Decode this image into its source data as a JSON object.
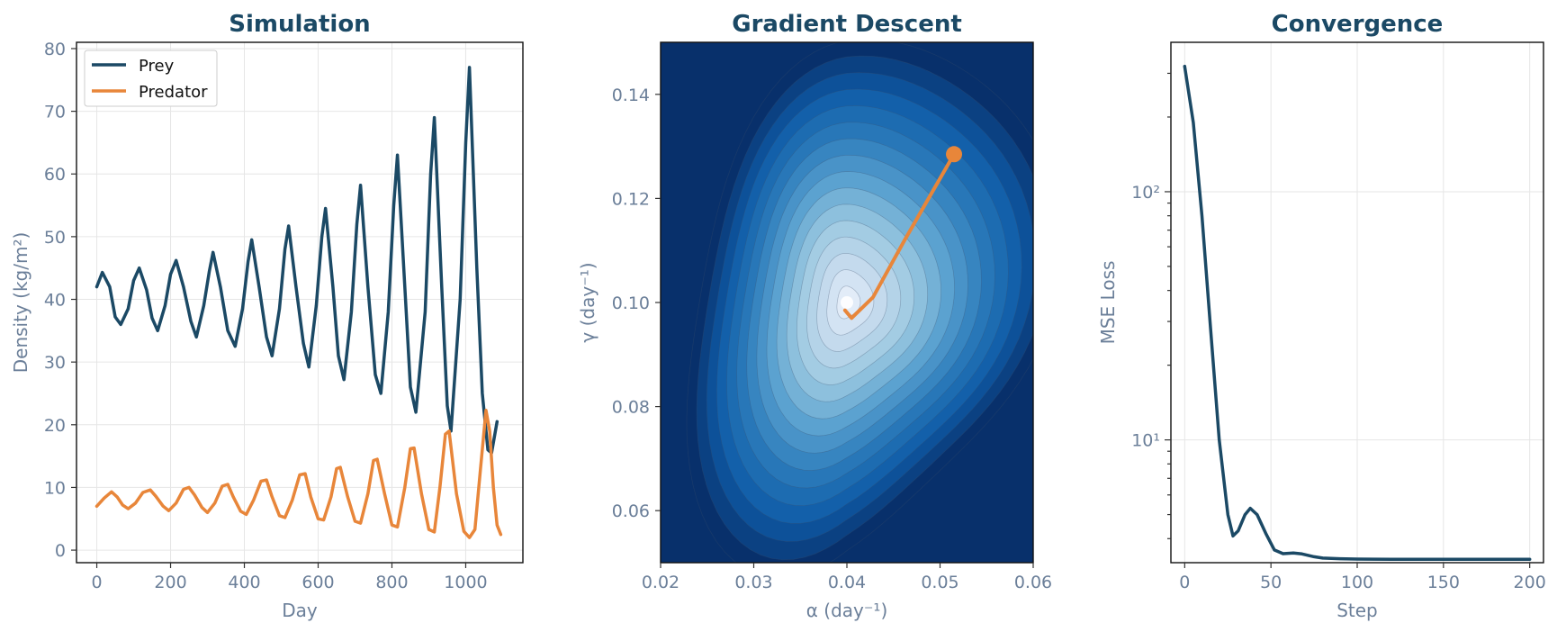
{
  "chart_data": [
    {
      "type": "line",
      "title": "Simulation",
      "xlabel": "Day",
      "ylabel": "Density (kg/m²)",
      "xlim": [
        -55,
        1155
      ],
      "ylim": [
        -2,
        81
      ],
      "xticks": [
        0,
        200,
        400,
        600,
        800,
        1000
      ],
      "yticks": [
        0,
        10,
        20,
        30,
        40,
        50,
        60,
        70,
        80
      ],
      "grid": true,
      "legend": "top-left",
      "series": [
        {
          "name": "Prey",
          "color": "#1b4965",
          "points": [
            [
              0,
              42
            ],
            [
              15,
              44.3
            ],
            [
              35,
              42
            ],
            [
              50,
              37.2
            ],
            [
              65,
              36
            ],
            [
              85,
              38.5
            ],
            [
              100,
              43
            ],
            [
              115,
              45
            ],
            [
              135,
              41.5
            ],
            [
              150,
              37
            ],
            [
              165,
              35
            ],
            [
              185,
              39
            ],
            [
              200,
              44
            ],
            [
              215,
              46.2
            ],
            [
              235,
              42
            ],
            [
              255,
              36.5
            ],
            [
              270,
              34
            ],
            [
              290,
              39
            ],
            [
              305,
              44.5
            ],
            [
              315,
              47.5
            ],
            [
              335,
              42
            ],
            [
              355,
              35
            ],
            [
              375,
              32.5
            ],
            [
              395,
              38.5
            ],
            [
              410,
              46
            ],
            [
              420,
              49.5
            ],
            [
              440,
              42
            ],
            [
              460,
              34
            ],
            [
              475,
              31
            ],
            [
              495,
              38.5
            ],
            [
              510,
              48
            ],
            [
              520,
              51.7
            ],
            [
              540,
              42
            ],
            [
              560,
              33
            ],
            [
              575,
              29.2
            ],
            [
              595,
              39
            ],
            [
              610,
              50
            ],
            [
              620,
              54.5
            ],
            [
              640,
              42
            ],
            [
              655,
              31
            ],
            [
              670,
              27.2
            ],
            [
              690,
              38
            ],
            [
              705,
              52
            ],
            [
              715,
              58.2
            ],
            [
              735,
              42
            ],
            [
              755,
              28
            ],
            [
              770,
              25
            ],
            [
              790,
              38
            ],
            [
              805,
              55
            ],
            [
              815,
              63
            ],
            [
              835,
              42
            ],
            [
              850,
              26
            ],
            [
              865,
              22
            ],
            [
              890,
              38
            ],
            [
              905,
              60
            ],
            [
              915,
              69
            ],
            [
              935,
              42
            ],
            [
              950,
              23
            ],
            [
              960,
              19
            ],
            [
              985,
              40
            ],
            [
              1000,
              65
            ],
            [
              1010,
              77
            ],
            [
              1030,
              45
            ],
            [
              1045,
              25
            ],
            [
              1060,
              16
            ],
            [
              1070,
              15.5
            ],
            [
              1085,
              20.5
            ]
          ]
        },
        {
          "name": "Predator",
          "color": "#e8863a",
          "points": [
            [
              0,
              7
            ],
            [
              20,
              8.3
            ],
            [
              40,
              9.3
            ],
            [
              55,
              8.5
            ],
            [
              70,
              7.2
            ],
            [
              85,
              6.6
            ],
            [
              105,
              7.5
            ],
            [
              125,
              9.2
            ],
            [
              145,
              9.6
            ],
            [
              160,
              8.6
            ],
            [
              180,
              7
            ],
            [
              195,
              6.3
            ],
            [
              215,
              7.5
            ],
            [
              235,
              9.7
            ],
            [
              250,
              10
            ],
            [
              265,
              8.8
            ],
            [
              285,
              6.8
            ],
            [
              300,
              6
            ],
            [
              320,
              7.5
            ],
            [
              340,
              10.2
            ],
            [
              355,
              10.5
            ],
            [
              370,
              8.5
            ],
            [
              390,
              6.2
            ],
            [
              405,
              5.7
            ],
            [
              425,
              8
            ],
            [
              445,
              11
            ],
            [
              460,
              11.2
            ],
            [
              475,
              8.5
            ],
            [
              495,
              5.5
            ],
            [
              510,
              5.2
            ],
            [
              530,
              8
            ],
            [
              550,
              12
            ],
            [
              565,
              12.2
            ],
            [
              580,
              8.5
            ],
            [
              600,
              5
            ],
            [
              615,
              4.8
            ],
            [
              635,
              8.5
            ],
            [
              650,
              13
            ],
            [
              660,
              13.2
            ],
            [
              680,
              8.5
            ],
            [
              700,
              4.6
            ],
            [
              715,
              4.3
            ],
            [
              735,
              9
            ],
            [
              750,
              14.3
            ],
            [
              760,
              14.5
            ],
            [
              780,
              9
            ],
            [
              800,
              4
            ],
            [
              815,
              3.7
            ],
            [
              835,
              10
            ],
            [
              850,
              16.2
            ],
            [
              860,
              16.3
            ],
            [
              880,
              9
            ],
            [
              900,
              3.3
            ],
            [
              915,
              2.9
            ],
            [
              930,
              10
            ],
            [
              945,
              18.5
            ],
            [
              955,
              19
            ],
            [
              975,
              9
            ],
            [
              995,
              3
            ],
            [
              1010,
              2
            ],
            [
              1025,
              3.3
            ],
            [
              1040,
              13
            ],
            [
              1055,
              22.3
            ],
            [
              1065,
              19
            ],
            [
              1075,
              10
            ],
            [
              1085,
              4
            ],
            [
              1095,
              2.5
            ]
          ]
        }
      ]
    },
    {
      "type": "heatmap",
      "title": "Gradient Descent",
      "xlabel": "α (day⁻¹)",
      "ylabel": "γ (day⁻¹)",
      "xlim": [
        0.02,
        0.06
      ],
      "ylim": [
        0.05,
        0.15
      ],
      "xticks": [
        0.02,
        0.03,
        0.04,
        0.05,
        0.06
      ],
      "yticks": [
        0.06,
        0.08,
        0.1,
        0.12,
        0.14
      ],
      "colormap": [
        "#f1f6fd",
        "#c9dcef",
        "#9ecae1",
        "#5ba2d0",
        "#2b7bba",
        "#0f5ca8",
        "#08306b"
      ],
      "minimum": {
        "alpha": 0.04,
        "gamma": 0.1
      },
      "path": {
        "color": "#e8863a",
        "points": [
          [
            0.0515,
            0.1285
          ],
          [
            0.0462,
            0.112
          ],
          [
            0.0428,
            0.101
          ],
          [
            0.0405,
            0.097
          ],
          [
            0.0398,
            0.0985
          ]
        ]
      }
    },
    {
      "type": "line",
      "title": "Convergence",
      "xlabel": "Step",
      "ylabel": "MSE Loss",
      "yscale": "log",
      "xlim": [
        -8,
        208
      ],
      "ylim": [
        3.2,
        400
      ],
      "xticks": [
        0,
        50,
        100,
        150,
        200
      ],
      "yticks": [
        10,
        100
      ],
      "yticklabels": [
        "10¹",
        "10²"
      ],
      "grid": true,
      "series": [
        {
          "color": "#1b4965",
          "points": [
            [
              0,
              320
            ],
            [
              5,
              190
            ],
            [
              10,
              80
            ],
            [
              15,
              28
            ],
            [
              20,
              10
            ],
            [
              25,
              5
            ],
            [
              28,
              4.1
            ],
            [
              31,
              4.3
            ],
            [
              35,
              5
            ],
            [
              38,
              5.3
            ],
            [
              42,
              5
            ],
            [
              47,
              4.2
            ],
            [
              52,
              3.6
            ],
            [
              57,
              3.48
            ],
            [
              63,
              3.5
            ],
            [
              68,
              3.47
            ],
            [
              75,
              3.38
            ],
            [
              80,
              3.34
            ],
            [
              90,
              3.32
            ],
            [
              100,
              3.31
            ],
            [
              120,
              3.3
            ],
            [
              150,
              3.3
            ],
            [
              180,
              3.3
            ],
            [
              200,
              3.3
            ]
          ]
        }
      ]
    }
  ]
}
